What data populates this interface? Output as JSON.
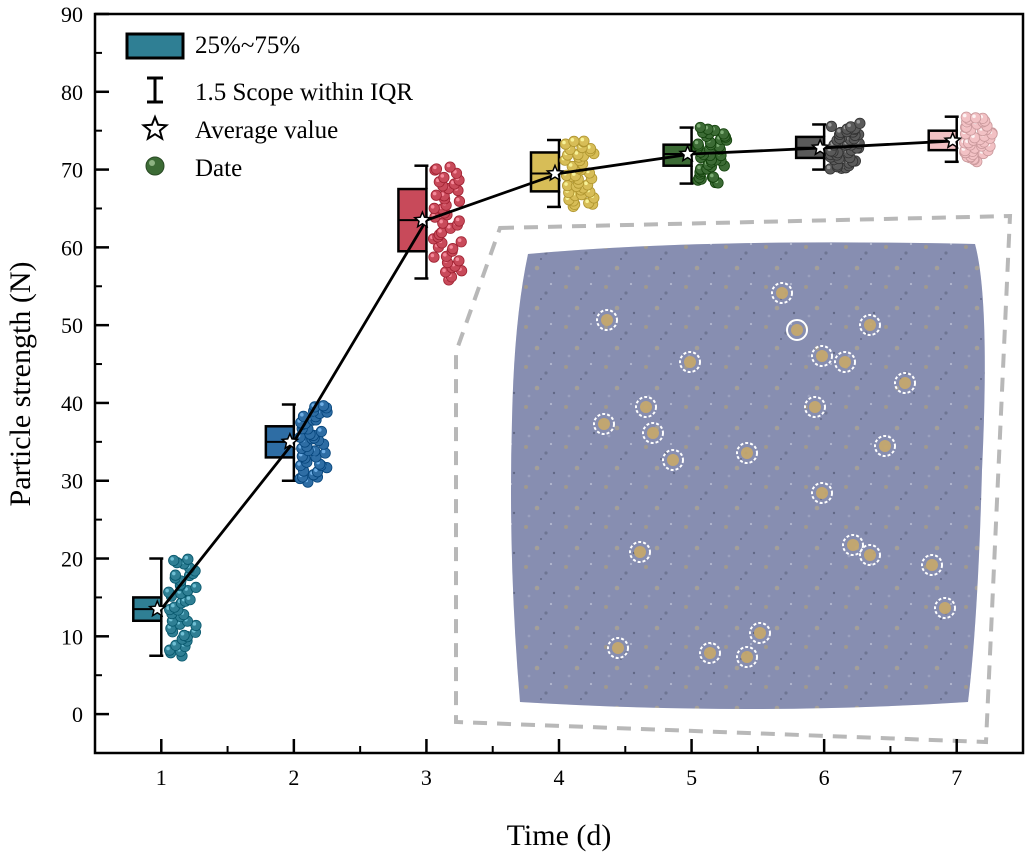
{
  "chart_data": {
    "type": "box",
    "title": "",
    "xlabel": "Time (d)",
    "ylabel": "Particle strength (N)",
    "xlim": [
      0.5,
      7.5
    ],
    "ylim": [
      -5,
      90
    ],
    "xticks": [
      "1",
      "2",
      "3",
      "4",
      "5",
      "6",
      "7"
    ],
    "yticks": [
      "0",
      "10",
      "20",
      "30",
      "40",
      "50",
      "60",
      "70",
      "80",
      "90"
    ],
    "legend": {
      "position": "top-left",
      "entries": [
        {
          "label": "25%~75%",
          "symbol": "box"
        },
        {
          "label": "1.5 Scope within IQR",
          "symbol": "whisker"
        },
        {
          "label": "Average value",
          "symbol": "star"
        },
        {
          "label": "Date",
          "symbol": "dot"
        }
      ]
    },
    "series": [
      {
        "x": 1,
        "q1": 12,
        "q3": 15,
        "median": 13.5,
        "whisker_low": 7.5,
        "whisker_high": 20,
        "mean": 13.5,
        "color": "#2f7f94",
        "point_range": [
          7.5,
          20
        ]
      },
      {
        "x": 2,
        "q1": 33,
        "q3": 37,
        "median": 35,
        "whisker_low": 30,
        "whisker_high": 39.8,
        "mean": 35,
        "color": "#2e6da4",
        "point_range": [
          30,
          39.8
        ]
      },
      {
        "x": 3,
        "q1": 59.5,
        "q3": 67.5,
        "median": 63.5,
        "whisker_low": 56,
        "whisker_high": 70.5,
        "mean": 63.5,
        "color": "#c84a5a",
        "point_range": [
          56,
          70.5
        ]
      },
      {
        "x": 4,
        "q1": 67.2,
        "q3": 72.2,
        "median": 69.5,
        "whisker_low": 65.2,
        "whisker_high": 73.8,
        "mean": 69.5,
        "color": "#d7bd57",
        "point_range": [
          65.2,
          73.8
        ]
      },
      {
        "x": 5,
        "q1": 70.5,
        "q3": 73.2,
        "median": 72,
        "whisker_low": 68.2,
        "whisker_high": 75.4,
        "mean": 72,
        "color": "#3c6b35",
        "point_range": [
          68.2,
          75.4
        ]
      },
      {
        "x": 6,
        "q1": 71.5,
        "q3": 74.2,
        "median": 72.8,
        "whisker_low": 70,
        "whisker_high": 75.8,
        "mean": 72.8,
        "color": "#5a5a5a",
        "point_range": [
          70,
          75.8
        ]
      },
      {
        "x": 7,
        "q1": 72.5,
        "q3": 75,
        "median": 73.7,
        "whisker_low": 71,
        "whisker_high": 76.8,
        "mean": 73.7,
        "color": "#f2c1c4",
        "point_range": [
          71,
          76.8
        ]
      }
    ],
    "mean_line": {
      "x": [
        1,
        2,
        3,
        4,
        5,
        6,
        7
      ],
      "y": [
        13.5,
        35,
        63.5,
        69.5,
        72,
        72.8,
        73.7
      ]
    },
    "inset_image": {
      "description": "particle surface photo",
      "position": "bottom-right"
    }
  }
}
